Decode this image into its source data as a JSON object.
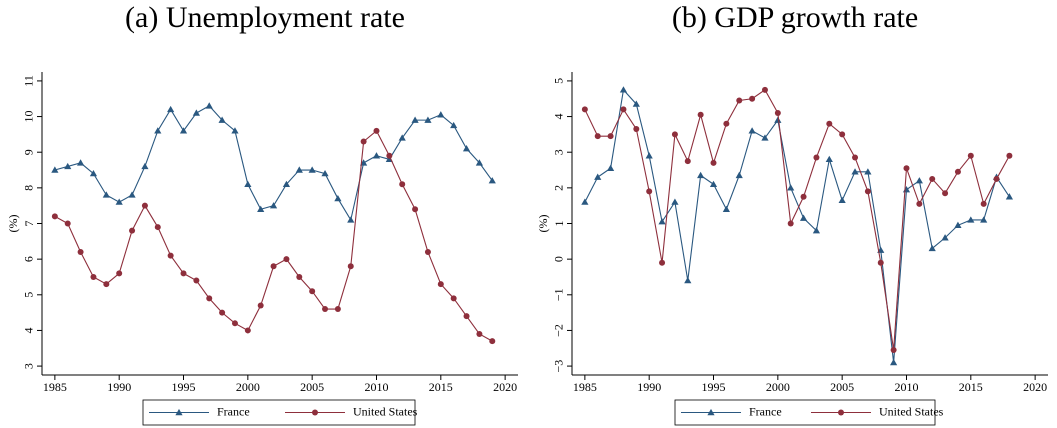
{
  "chart_data": [
    {
      "type": "line",
      "title": "(a) Unemployment rate",
      "y_label": "(%)",
      "x": [
        1985,
        1986,
        1987,
        1988,
        1989,
        1990,
        1991,
        1992,
        1993,
        1994,
        1995,
        1996,
        1997,
        1998,
        1999,
        2000,
        2001,
        2002,
        2003,
        2004,
        2005,
        2006,
        2007,
        2008,
        2009,
        2010,
        2011,
        2012,
        2013,
        2014,
        2015,
        2016,
        2017,
        2018,
        2019
      ],
      "series": [
        {
          "name": "France",
          "color": "#2a5880",
          "marker": "triangle",
          "values": [
            8.5,
            8.6,
            8.7,
            8.4,
            7.8,
            7.6,
            7.8,
            8.6,
            9.6,
            10.2,
            9.6,
            10.1,
            10.3,
            9.9,
            9.6,
            8.1,
            7.4,
            7.5,
            8.1,
            8.5,
            8.5,
            8.4,
            7.7,
            7.1,
            8.7,
            8.9,
            8.8,
            9.4,
            9.9,
            9.9,
            10.05,
            9.75,
            9.1,
            8.7,
            8.2
          ]
        },
        {
          "name": "United States",
          "color": "#8e2f3c",
          "marker": "circle",
          "values": [
            7.2,
            7.0,
            6.2,
            5.5,
            5.3,
            5.6,
            6.8,
            7.5,
            6.9,
            6.1,
            5.6,
            5.4,
            4.9,
            4.5,
            4.2,
            4.0,
            4.7,
            5.8,
            6.0,
            5.5,
            5.1,
            4.6,
            4.6,
            5.8,
            9.3,
            9.6,
            8.9,
            8.1,
            7.4,
            6.2,
            5.3,
            4.9,
            4.4,
            3.9,
            3.7
          ]
        }
      ],
      "xlim": [
        1984,
        2021
      ],
      "xticks": [
        1985,
        1990,
        1995,
        2000,
        2005,
        2010,
        2015,
        2020
      ],
      "ylim": [
        2.75,
        11.25
      ],
      "yticks": [
        3,
        4,
        5,
        6,
        7,
        8,
        9,
        10,
        11
      ],
      "legend": "bottom"
    },
    {
      "type": "line",
      "title": "(b) GDP growth rate",
      "y_label": "(%)",
      "x": [
        1985,
        1986,
        1987,
        1988,
        1989,
        1990,
        1991,
        1992,
        1993,
        1994,
        1995,
        1996,
        1997,
        1998,
        1999,
        2000,
        2001,
        2002,
        2003,
        2004,
        2005,
        2006,
        2007,
        2008,
        2009,
        2010,
        2011,
        2012,
        2013,
        2014,
        2015,
        2016,
        2017,
        2018
      ],
      "series": [
        {
          "name": "France",
          "color": "#2a5880",
          "marker": "triangle",
          "values": [
            1.6,
            2.3,
            2.55,
            4.75,
            4.35,
            2.9,
            1.05,
            1.6,
            -0.6,
            2.35,
            2.1,
            1.4,
            2.35,
            3.6,
            3.4,
            3.9,
            2.0,
            1.15,
            0.8,
            2.8,
            1.65,
            2.45,
            2.45,
            0.25,
            -2.9,
            1.95,
            2.2,
            0.3,
            0.6,
            0.95,
            1.1,
            1.1,
            2.3,
            1.75
          ]
        },
        {
          "name": "United States",
          "color": "#8e2f3c",
          "marker": "circle",
          "values": [
            4.2,
            3.45,
            3.45,
            4.2,
            3.65,
            1.9,
            -0.1,
            3.5,
            2.75,
            4.05,
            2.7,
            3.8,
            4.45,
            4.5,
            4.75,
            4.1,
            1.0,
            1.75,
            2.85,
            3.8,
            3.5,
            2.85,
            1.9,
            -0.1,
            -2.55,
            2.55,
            1.55,
            2.25,
            1.85,
            2.45,
            2.9,
            1.55,
            2.25,
            2.9
          ]
        }
      ],
      "xlim": [
        1984,
        2021
      ],
      "xticks": [
        1985,
        1990,
        1995,
        2000,
        2005,
        2010,
        2015,
        2020
      ],
      "ylim": [
        -3.25,
        5.25
      ],
      "yticks": [
        {
          "value": -3,
          "label": "−3"
        },
        {
          "value": -2,
          "label": "−2"
        },
        {
          "value": -1,
          "label": "−1"
        },
        0,
        1,
        2,
        3,
        4,
        5
      ],
      "legend": "bottom"
    }
  ]
}
